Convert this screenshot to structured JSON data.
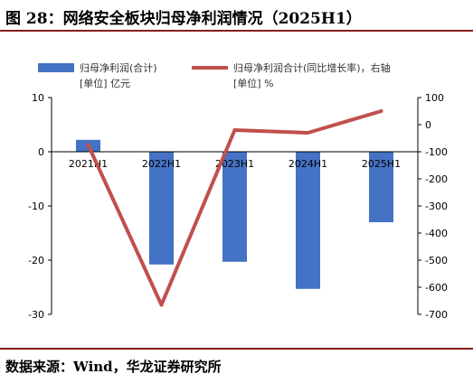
{
  "title": "图 28：网络安全板块归母净利润情况（2025H1）",
  "source": "数据来源：Wind，华龙证券研究所",
  "chart_data": {
    "type": "bar+line",
    "categories": [
      "2021H1",
      "2022H1",
      "2023H1",
      "2024H1",
      "2025H1"
    ],
    "series": [
      {
        "name": "归母净利润(合计)",
        "unit_label": "[单位] 亿元",
        "type": "bar",
        "axis": "left",
        "color": "#4472c4",
        "values": [
          2.2,
          -20.8,
          -20.3,
          -25.3,
          -13.0
        ]
      },
      {
        "name": "归母净利润合计(同比增长率)，右轴",
        "unit_label": "[单位] %",
        "type": "line",
        "axis": "right",
        "color": "#c0504d",
        "values": [
          -75,
          -665,
          -20,
          -30,
          50
        ]
      }
    ],
    "left_axis": {
      "min": -30,
      "max": 10,
      "ticks": [
        10,
        0,
        -10,
        -20,
        -30
      ]
    },
    "right_axis": {
      "min": -700,
      "max": 100,
      "ticks": [
        100,
        0,
        -100,
        -200,
        -300,
        -400,
        -500,
        -600,
        -700
      ]
    },
    "legend_position": "top"
  }
}
